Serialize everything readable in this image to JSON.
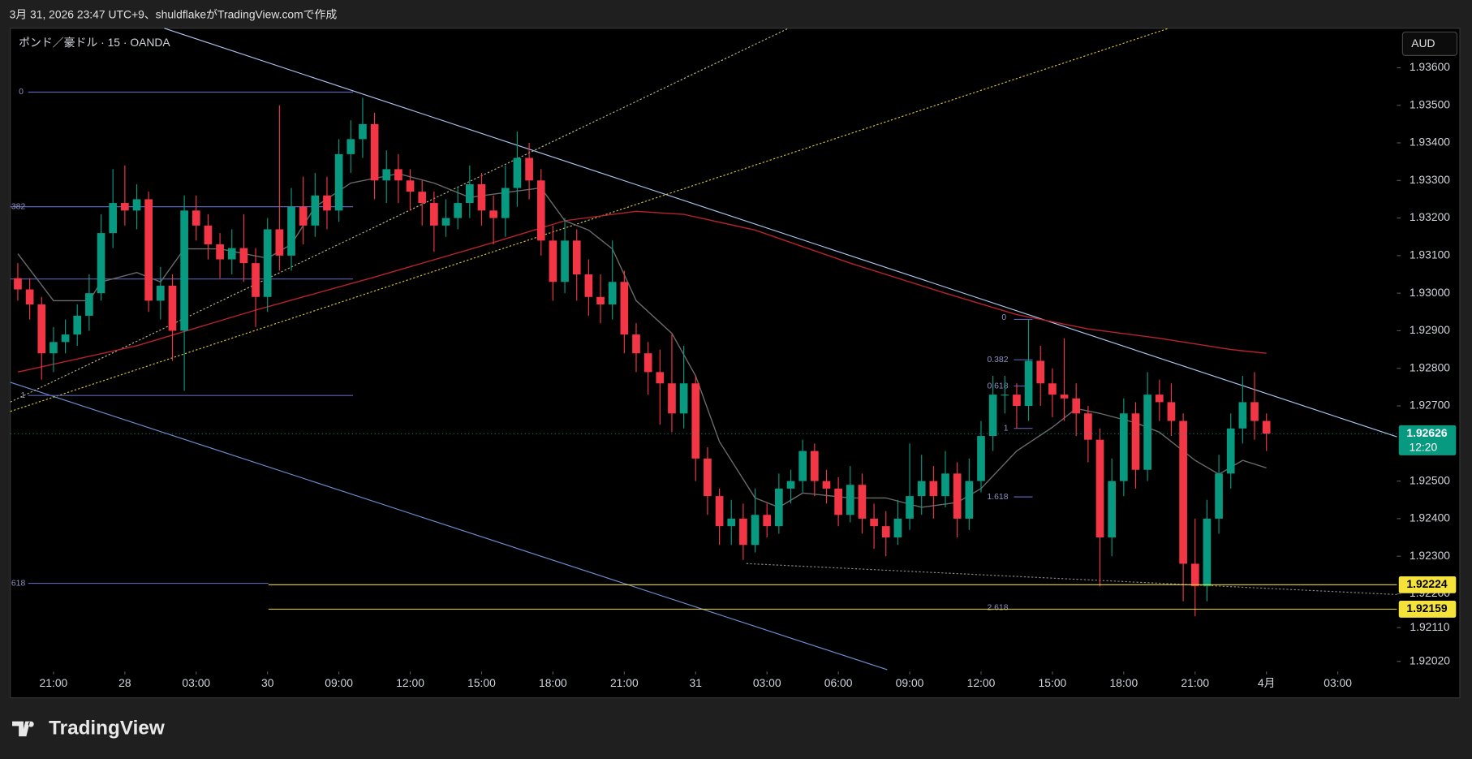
{
  "chart_data": {
    "type": "candlestick",
    "caption": "3月 31, 2026 23:47 UTC+9、shuldflakeがTradingView.comで作成",
    "title": "ポンド／豪ドル · 15 · OANDA",
    "currency": "AUD",
    "brand": "TradingView",
    "up_color": "#089981",
    "down_color": "#f23645",
    "grid": false,
    "xlim": [
      -0.63,
      115.97
    ],
    "xticks": [
      {
        "value": 3,
        "label": "21:00"
      },
      {
        "value": 9,
        "label": "28"
      },
      {
        "value": 15,
        "label": "03:00"
      },
      {
        "value": 21,
        "label": "30"
      },
      {
        "value": 27,
        "label": "09:00"
      },
      {
        "value": 33,
        "label": "12:00"
      },
      {
        "value": 39,
        "label": "15:00"
      },
      {
        "value": 45,
        "label": "18:00"
      },
      {
        "value": 51,
        "label": "21:00"
      },
      {
        "value": 57,
        "label": "31"
      },
      {
        "value": 63,
        "label": "03:00"
      },
      {
        "value": 69,
        "label": "06:00"
      },
      {
        "value": 75,
        "label": "09:00"
      },
      {
        "value": 81,
        "label": "12:00"
      },
      {
        "value": 87,
        "label": "15:00"
      },
      {
        "value": 93,
        "label": "18:00"
      },
      {
        "value": 99,
        "label": "21:00"
      },
      {
        "value": 105,
        "label": "4月"
      },
      {
        "value": 111,
        "label": "03:00"
      }
    ],
    "ylim": [
      1.91998,
      1.93705
    ],
    "yticks": [
      {
        "value": 1.936,
        "label": "1.93600"
      },
      {
        "value": 1.935,
        "label": "1.93500"
      },
      {
        "value": 1.934,
        "label": "1.93400"
      },
      {
        "value": 1.933,
        "label": "1.93300"
      },
      {
        "value": 1.932,
        "label": "1.93200"
      },
      {
        "value": 1.931,
        "label": "1.93100"
      },
      {
        "value": 1.93,
        "label": "1.93000"
      },
      {
        "value": 1.929,
        "label": "1.92900"
      },
      {
        "value": 1.928,
        "label": "1.92800"
      },
      {
        "value": 1.927,
        "label": "1.92700"
      },
      {
        "value": 1.925,
        "label": "1.92500"
      },
      {
        "value": 1.924,
        "label": "1.92400"
      },
      {
        "value": 1.923,
        "label": "1.92300"
      },
      {
        "value": 1.922,
        "label": "1.92200"
      },
      {
        "value": 1.9211,
        "label": "1.92110"
      },
      {
        "value": 1.9202,
        "label": "1.92020"
      }
    ],
    "open": [
      1.9304,
      1.9301,
      1.9297,
      1.9284,
      1.9287,
      1.9289,
      1.9294,
      1.93,
      1.9316,
      1.9324,
      1.9322,
      1.9325,
      1.9298,
      1.9302,
      1.929,
      1.9322,
      1.9318,
      1.9313,
      1.9309,
      1.9312,
      1.9308,
      1.9299,
      1.9317,
      1.931,
      1.9323,
      1.9318,
      1.9326,
      1.9322,
      1.9337,
      1.9341,
      1.9345,
      1.933,
      1.9333,
      1.933,
      1.9327,
      1.9324,
      1.9318,
      1.932,
      1.9324,
      1.9329,
      1.9322,
      1.932,
      1.9328,
      1.9336,
      1.933,
      1.9314,
      1.9303,
      1.9314,
      1.9305,
      1.9299,
      1.9297,
      1.9303,
      1.9289,
      1.9284,
      1.9279,
      1.9276,
      1.9268,
      1.9276,
      1.9256,
      1.9246,
      1.9238,
      1.924,
      1.9233,
      1.9241,
      1.9238,
      1.9248,
      1.925,
      1.9258,
      1.925,
      1.9248,
      1.9241,
      1.9249,
      1.924,
      1.9238,
      1.9235,
      1.924,
      1.9246,
      1.925,
      1.9246,
      1.9252,
      1.924,
      1.925,
      1.9262,
      1.9273,
      1.9273,
      1.927,
      1.9282,
      1.9276,
      1.9273,
      1.9272,
      1.9268,
      1.9261,
      1.9235,
      1.925,
      1.9268,
      1.9253,
      1.9273,
      1.9271,
      1.9266,
      1.9228,
      1.9222,
      1.924,
      1.9252,
      1.9264,
      1.9271,
      1.9266
    ],
    "high": [
      1.9308,
      1.9304,
      1.9299,
      1.9291,
      1.9293,
      1.9297,
      1.9305,
      1.9321,
      1.9333,
      1.9334,
      1.9329,
      1.9327,
      1.9307,
      1.9305,
      1.9326,
      1.9326,
      1.9321,
      1.9316,
      1.9317,
      1.9321,
      1.9312,
      1.932,
      1.935,
      1.9328,
      1.9331,
      1.9332,
      1.9331,
      1.9341,
      1.9346,
      1.9352,
      1.9348,
      1.9338,
      1.9337,
      1.9333,
      1.933,
      1.9327,
      1.9325,
      1.9328,
      1.9334,
      1.9332,
      1.9326,
      1.9334,
      1.9343,
      1.934,
      1.9333,
      1.9318,
      1.932,
      1.9317,
      1.9309,
      1.9305,
      1.9314,
      1.9306,
      1.9292,
      1.9287,
      1.9285,
      1.9289,
      1.9286,
      1.9278,
      1.9259,
      1.9248,
      1.9245,
      1.9244,
      1.9248,
      1.9244,
      1.9252,
      1.9253,
      1.9261,
      1.926,
      1.9253,
      1.9251,
      1.9254,
      1.9252,
      1.9244,
      1.9242,
      1.9245,
      1.926,
      1.9257,
      1.9254,
      1.9258,
      1.9255,
      1.9256,
      1.9266,
      1.9278,
      1.9278,
      1.9276,
      1.9293,
      1.9286,
      1.928,
      1.9288,
      1.9276,
      1.927,
      1.9264,
      1.9256,
      1.9272,
      1.9271,
      1.9279,
      1.9277,
      1.9276,
      1.9268,
      1.924,
      1.9245,
      1.9257,
      1.9268,
      1.9278,
      1.9279,
      1.9268
    ],
    "low": [
      1.9298,
      1.9293,
      1.9277,
      1.9279,
      1.9284,
      1.9286,
      1.929,
      1.9298,
      1.9312,
      1.9318,
      1.9317,
      1.9295,
      1.9293,
      1.9282,
      1.9274,
      1.9314,
      1.9309,
      1.9304,
      1.9305,
      1.9303,
      1.9291,
      1.9295,
      1.9306,
      1.9306,
      1.9313,
      1.9315,
      1.9317,
      1.9319,
      1.9332,
      1.9336,
      1.9325,
      1.9324,
      1.9324,
      1.9322,
      1.9318,
      1.9311,
      1.9315,
      1.9317,
      1.932,
      1.9318,
      1.9313,
      1.9315,
      1.9323,
      1.9325,
      1.931,
      1.9298,
      1.93,
      1.9298,
      1.9294,
      1.9292,
      1.9293,
      1.9284,
      1.9279,
      1.9273,
      1.9265,
      1.9263,
      1.9264,
      1.925,
      1.9241,
      1.9233,
      1.9233,
      1.9229,
      1.9231,
      1.9235,
      1.9236,
      1.9244,
      1.9247,
      1.9246,
      1.9244,
      1.9238,
      1.9239,
      1.9236,
      1.9232,
      1.923,
      1.9233,
      1.9237,
      1.9241,
      1.924,
      1.9243,
      1.9235,
      1.9237,
      1.9247,
      1.9258,
      1.9268,
      1.9264,
      1.9266,
      1.927,
      1.9267,
      1.9266,
      1.9262,
      1.9255,
      1.9222,
      1.923,
      1.9246,
      1.9248,
      1.925,
      1.9266,
      1.9262,
      1.9218,
      1.9214,
      1.9218,
      1.9236,
      1.9248,
      1.926,
      1.9261,
      1.9258
    ],
    "close": [
      1.9301,
      1.9297,
      1.9284,
      1.9287,
      1.9289,
      1.9294,
      1.93,
      1.9316,
      1.9324,
      1.9322,
      1.9325,
      1.9298,
      1.9302,
      1.929,
      1.9322,
      1.9318,
      1.9313,
      1.9309,
      1.9312,
      1.9308,
      1.9299,
      1.9317,
      1.931,
      1.9323,
      1.9318,
      1.9326,
      1.9322,
      1.9337,
      1.9341,
      1.9345,
      1.933,
      1.9333,
      1.933,
      1.9327,
      1.9324,
      1.9318,
      1.932,
      1.9324,
      1.9329,
      1.9322,
      1.932,
      1.9328,
      1.9336,
      1.933,
      1.9314,
      1.9303,
      1.9314,
      1.9305,
      1.9299,
      1.9297,
      1.9303,
      1.9289,
      1.9284,
      1.9279,
      1.9276,
      1.9268,
      1.9276,
      1.9256,
      1.9246,
      1.9238,
      1.924,
      1.9233,
      1.9241,
      1.9238,
      1.9248,
      1.925,
      1.9258,
      1.925,
      1.9248,
      1.9241,
      1.9249,
      1.924,
      1.9238,
      1.9235,
      1.924,
      1.9246,
      1.925,
      1.9246,
      1.9252,
      1.924,
      1.925,
      1.9262,
      1.9273,
      1.9273,
      1.927,
      1.9282,
      1.9276,
      1.9273,
      1.9272,
      1.9268,
      1.9261,
      1.9235,
      1.925,
      1.9268,
      1.9253,
      1.9273,
      1.9271,
      1.9266,
      1.9228,
      1.9222,
      1.924,
      1.9252,
      1.9264,
      1.9271,
      1.9266,
      1.92626
    ],
    "lines": [
      {
        "color": "#b8232e",
        "x": [
          0,
          10,
          20,
          30,
          40,
          46,
          52,
          56,
          62,
          70,
          78,
          84,
          90,
          96,
          102,
          105
        ],
        "values": [
          1.9279,
          1.9286,
          1.92955,
          1.93043,
          1.93135,
          1.93193,
          1.93218,
          1.9321,
          1.93168,
          1.9308,
          1.93,
          1.92943,
          1.92905,
          1.9288,
          1.9285,
          1.9284
        ]
      },
      {
        "color": "#6b6b6b",
        "x": [
          0,
          3,
          6,
          7,
          10,
          12,
          14,
          17,
          21,
          23,
          25,
          28,
          32,
          35,
          38,
          41,
          44,
          46,
          48,
          50,
          52,
          55,
          57,
          59,
          62,
          64,
          66,
          70,
          73,
          76,
          79,
          81,
          84,
          87,
          89,
          91,
          94,
          96,
          99,
          101,
          103,
          105
        ],
        "values": [
          1.93105,
          1.9298,
          1.9298,
          1.9303,
          1.93055,
          1.9303,
          1.93118,
          1.93118,
          1.93093,
          1.9313,
          1.9323,
          1.93293,
          1.93318,
          1.93293,
          1.93255,
          1.93268,
          1.9328,
          1.93193,
          1.93168,
          1.93118,
          1.9298,
          1.92893,
          1.9278,
          1.92605,
          1.92455,
          1.9243,
          1.92468,
          1.92455,
          1.92455,
          1.9243,
          1.92443,
          1.9248,
          1.9258,
          1.92643,
          1.92693,
          1.9268,
          1.92655,
          1.9263,
          1.92555,
          1.92518,
          1.92555,
          1.92535
        ]
      }
    ],
    "price_labels": [
      {
        "value": 1.92626,
        "label": "1.92626",
        "sublabel": "12:20",
        "color": "#089981"
      },
      {
        "value": 1.92224,
        "label": "1.92224",
        "color": "#f5e23b"
      },
      {
        "value": 1.92159,
        "label": "1.92159",
        "color": "#f5e23b"
      }
    ],
    "annotations": [
      "0",
      "382",
      "1",
      "618",
      "0",
      "0.382",
      "0.618",
      "1",
      "1.618",
      "2.618"
    ]
  }
}
